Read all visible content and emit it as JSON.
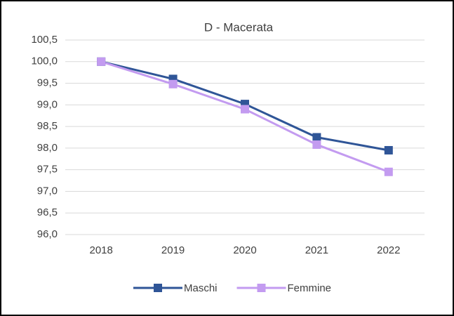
{
  "chart_data": {
    "type": "line",
    "title": "D - Macerata",
    "categories": [
      "2018",
      "2019",
      "2020",
      "2021",
      "2022"
    ],
    "series": [
      {
        "name": "Maschi",
        "color": "#2f5597",
        "values": [
          100.0,
          99.6,
          99.02,
          98.25,
          97.95
        ]
      },
      {
        "name": "Femmine",
        "color": "#c39bf0",
        "values": [
          100.0,
          99.48,
          98.9,
          98.08,
          97.45
        ]
      }
    ],
    "ylim": [
      96.0,
      100.5
    ],
    "yticks": [
      {
        "value": 96.0,
        "label": "96,0"
      },
      {
        "value": 96.5,
        "label": "96,5"
      },
      {
        "value": 97.0,
        "label": "97,0"
      },
      {
        "value": 97.5,
        "label": "97,5"
      },
      {
        "value": 98.0,
        "label": "98,0"
      },
      {
        "value": 98.5,
        "label": "98,5"
      },
      {
        "value": 99.0,
        "label": "99,0"
      },
      {
        "value": 99.5,
        "label": "99,5"
      },
      {
        "value": 100.0,
        "label": "100,0"
      },
      {
        "value": 100.5,
        "label": "100,5"
      }
    ],
    "grid": true,
    "legend": "bottom"
  }
}
